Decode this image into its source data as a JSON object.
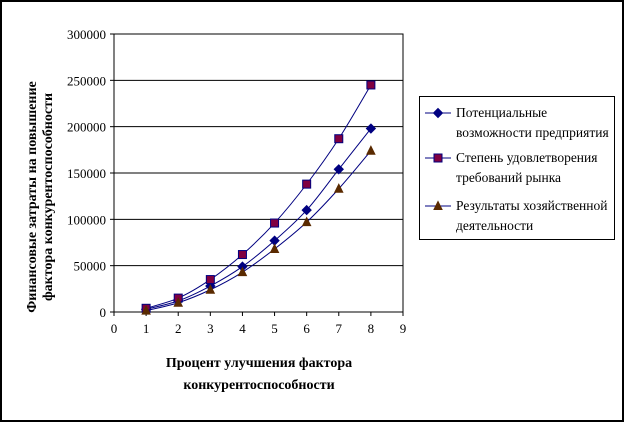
{
  "chart_data": {
    "type": "line",
    "title": "",
    "xlabel": "Процент улучшения фактора конкурентоспособности",
    "xlabel_lines": [
      "Процент улучшения фактора",
      "конкурентоспособности"
    ],
    "ylabel": "Финансовые затраты на повышение фактора конкурентоспособности",
    "ylabel_lines": [
      "Финансовые затраты на повышение",
      "фактора конкурентоспособности"
    ],
    "xlim": [
      0,
      9
    ],
    "ylim": [
      0,
      300000
    ],
    "x_ticks": [
      "0",
      "1",
      "2",
      "3",
      "4",
      "5",
      "6",
      "7",
      "8",
      "9"
    ],
    "y_ticks": [
      "0",
      "50000",
      "100000",
      "150000",
      "200000",
      "250000",
      "300000"
    ],
    "x": [
      1,
      2,
      3,
      4,
      5,
      6,
      7,
      8
    ],
    "grid": "horizontal",
    "legend_position": "right",
    "series": [
      {
        "name": "Потенциальные возможности предприятия",
        "name_lines": [
          "Потенциальные",
          "возможности предприятия"
        ],
        "marker": "diamond",
        "color": "#000080",
        "values": [
          3000,
          12000,
          28000,
          49000,
          77000,
          110000,
          154000,
          198000
        ]
      },
      {
        "name": "Степень удовлетворения требований рынка",
        "name_lines": [
          "Степень удовлетворения",
          "требований рынка"
        ],
        "marker": "square",
        "color": "#800040",
        "values": [
          4000,
          15000,
          35000,
          62000,
          96000,
          138000,
          187000,
          245000
        ]
      },
      {
        "name": "Результаты хозяйственной деятельности",
        "name_lines": [
          "Результаты хозяйственной",
          "деятельности"
        ],
        "marker": "triangle",
        "color": "#5a2a00",
        "values": [
          1500,
          10000,
          24000,
          43000,
          68000,
          97000,
          133000,
          174000
        ]
      }
    ]
  }
}
